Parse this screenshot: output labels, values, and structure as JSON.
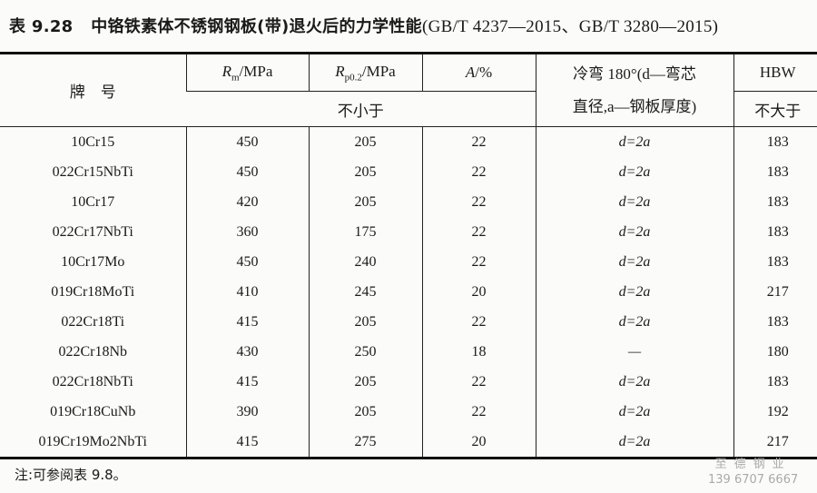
{
  "title": {
    "label": "表 9.28",
    "text": "中铬铁素体不锈钢钢板(带)退火后的力学性能",
    "standard": "(GB/T 4237—2015、GB/T 3280—2015)"
  },
  "headers": {
    "grade": "牌　号",
    "rm": "Rm/MPa",
    "rp": "Rp0.2/MPa",
    "a": "A/%",
    "bend_line1": "冷弯 180°(d—弯芯",
    "bend_line2": "直径,a—钢板厚度)",
    "hbw": "HBW",
    "min": "不小于",
    "max": "不大于"
  },
  "rows": [
    {
      "grade": "10Cr15",
      "rm": "450",
      "rp": "205",
      "a": "22",
      "bend": "d=2a",
      "hbw": "183"
    },
    {
      "grade": "022Cr15NbTi",
      "rm": "450",
      "rp": "205",
      "a": "22",
      "bend": "d=2a",
      "hbw": "183"
    },
    {
      "grade": "10Cr17",
      "rm": "420",
      "rp": "205",
      "a": "22",
      "bend": "d=2a",
      "hbw": "183"
    },
    {
      "grade": "022Cr17NbTi",
      "rm": "360",
      "rp": "175",
      "a": "22",
      "bend": "d=2a",
      "hbw": "183"
    },
    {
      "grade": "10Cr17Mo",
      "rm": "450",
      "rp": "240",
      "a": "22",
      "bend": "d=2a",
      "hbw": "183"
    },
    {
      "grade": "019Cr18MoTi",
      "rm": "410",
      "rp": "245",
      "a": "20",
      "bend": "d=2a",
      "hbw": "217"
    },
    {
      "grade": "022Cr18Ti",
      "rm": "415",
      "rp": "205",
      "a": "22",
      "bend": "d=2a",
      "hbw": "183"
    },
    {
      "grade": "022Cr18Nb",
      "rm": "430",
      "rp": "250",
      "a": "18",
      "bend": "—",
      "hbw": "180"
    },
    {
      "grade": "022Cr18NbTi",
      "rm": "415",
      "rp": "205",
      "a": "22",
      "bend": "d=2a",
      "hbw": "183"
    },
    {
      "grade": "019Cr18CuNb",
      "rm": "390",
      "rp": "205",
      "a": "22",
      "bend": "d=2a",
      "hbw": "192"
    },
    {
      "grade": "019Cr19Mo2NbTi",
      "rm": "415",
      "rp": "275",
      "a": "20",
      "bend": "d=2a",
      "hbw": "217"
    }
  ],
  "note": "注:可参阅表 9.8。",
  "watermark": {
    "company": "至德钢业",
    "phone": "139 6707 6667"
  }
}
